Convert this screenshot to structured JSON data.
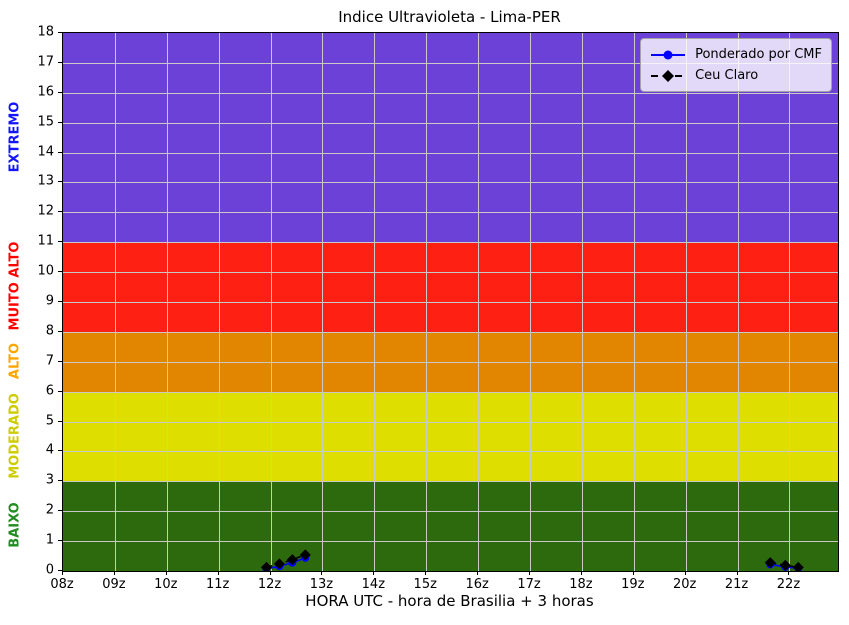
{
  "chart_data": {
    "type": "line",
    "title": "Indice Ultravioleta - Lima-PER",
    "xlabel": "HORA UTC - hora de Brasilia + 3 horas",
    "ylabel": "",
    "xlim": [
      8,
      22.935
    ],
    "ylim": [
      0,
      18
    ],
    "y_tick_step": 1,
    "grid": true,
    "grid_color": "#c9c9c9",
    "legend_position": "top-right",
    "x_ticks": [
      {
        "value": 8,
        "label": "08z"
      },
      {
        "value": 9,
        "label": "09z"
      },
      {
        "value": 10,
        "label": "10z"
      },
      {
        "value": 11,
        "label": "11z"
      },
      {
        "value": 12,
        "label": "12z"
      },
      {
        "value": 13,
        "label": "13z"
      },
      {
        "value": 14,
        "label": "14z"
      },
      {
        "value": 15,
        "label": "15z"
      },
      {
        "value": 16,
        "label": "16z"
      },
      {
        "value": 17,
        "label": "17z"
      },
      {
        "value": 18,
        "label": "18z"
      },
      {
        "value": 19,
        "label": "19z"
      },
      {
        "value": 20,
        "label": "20z"
      },
      {
        "value": 21,
        "label": "21z"
      },
      {
        "value": 22,
        "label": "22z"
      }
    ],
    "bands": [
      {
        "label": "BAIXO",
        "from": 0,
        "to": 3,
        "color": "#2d6a0e",
        "label_color": "#228b22"
      },
      {
        "label": "MODERADO",
        "from": 3,
        "to": 6,
        "color": "#dede00",
        "label_color": "#cccc00"
      },
      {
        "label": "ALTO",
        "from": 6,
        "to": 8,
        "color": "#e28500",
        "label_color": "#ffa500"
      },
      {
        "label": "MUITO ALTO",
        "from": 8,
        "to": 11,
        "color": "#ff2014",
        "label_color": "#ff0000"
      },
      {
        "label": "EXTREMO",
        "from": 11,
        "to": 18,
        "color": "#6b41d8",
        "label_color": "#1414ff"
      }
    ],
    "series": [
      {
        "name": "Ponderado por CMF",
        "color": "#0000ff",
        "marker": "circle",
        "line": "solid",
        "segments": [
          {
            "x": [
              11.92,
              12.17,
              12.42,
              12.67
            ],
            "y": [
              0.07,
              0.16,
              0.28,
              0.44
            ]
          },
          {
            "x": [
              21.63,
              21.92,
              22.17
            ],
            "y": [
              0.22,
              0.14,
              0.09
            ]
          }
        ]
      },
      {
        "name": "Ceu Claro",
        "color": "#000000",
        "marker": "diamond",
        "line": "dashed",
        "segments": [
          {
            "x": [
              11.92,
              12.17,
              12.42,
              12.67
            ],
            "y": [
              0.12,
              0.24,
              0.38,
              0.54
            ]
          },
          {
            "x": [
              21.63,
              21.92,
              22.17
            ],
            "y": [
              0.28,
              0.19,
              0.12
            ]
          }
        ]
      }
    ]
  }
}
